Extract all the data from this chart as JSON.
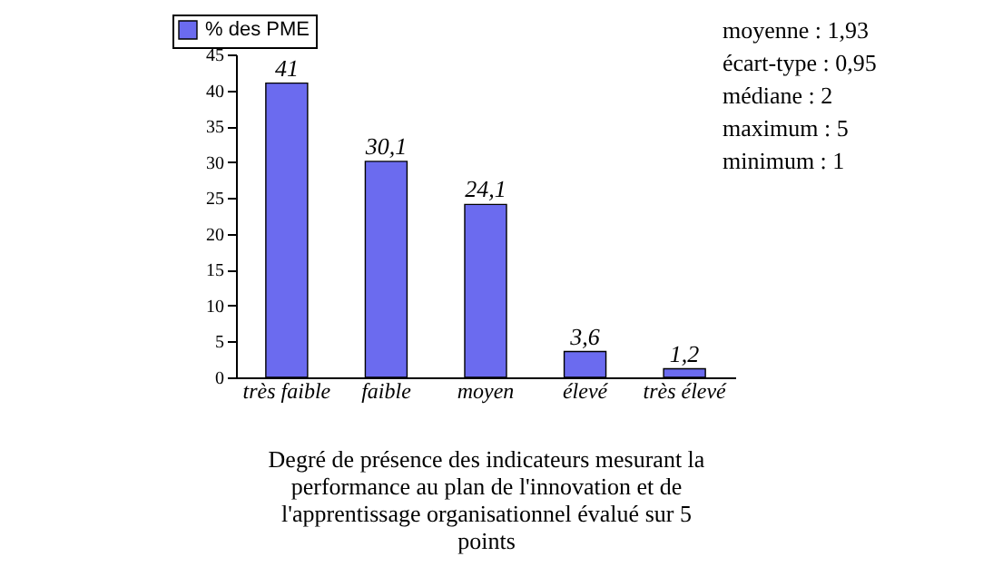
{
  "chart_data": {
    "type": "bar",
    "categories": [
      "très faible",
      "faible",
      "moyen",
      "élevé",
      "très élevé"
    ],
    "series": [
      {
        "name": "% des PME",
        "color": "#6b6bef",
        "values": [
          41,
          30.1,
          24.1,
          3.6,
          1.2
        ],
        "value_labels": [
          "41",
          "30,1",
          "24,1",
          "3,6",
          "1,2"
        ]
      }
    ],
    "ylim": [
      0,
      45
    ],
    "yticks": [
      0,
      5,
      10,
      15,
      20,
      25,
      30,
      35,
      40,
      45
    ],
    "grid": false,
    "legend": "top left",
    "xlabel": "Degré de présence des indicateurs mesurant la performance au plan de l'innovation et de l'apprentissage organisationnel évalué sur 5 points",
    "annotations": [
      "moyenne : 1,93",
      "écart-type : 0,95",
      "médiane : 2",
      "maximum : 5",
      "minimum : 1"
    ]
  }
}
